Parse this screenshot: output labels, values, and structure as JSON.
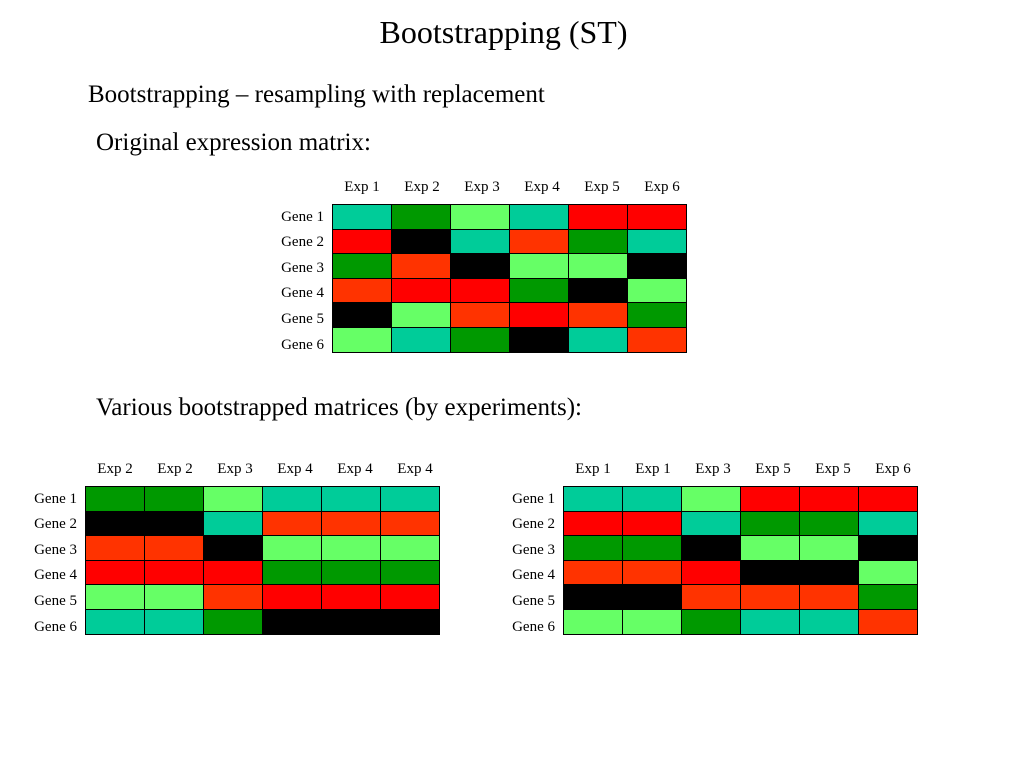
{
  "slide": {
    "title": "Bootstrapping (ST)",
    "subtitle": "Bootstrapping – resampling with replacement",
    "original_heading": "Original expression matrix:",
    "bootstrapped_heading": "Various bootstrapped matrices (by experiments):"
  },
  "colors": {
    "T": "#00cc99",
    "G": "#009900",
    "L": "#66ff66",
    "R": "#ff0000",
    "O": "#ff3300",
    "K": "#000000"
  },
  "matrices": [
    {
      "name": "original",
      "columns": [
        "Exp 1",
        "Exp 2",
        "Exp 3",
        "Exp 4",
        "Exp 5",
        "Exp 6"
      ],
      "rows": [
        "Gene 1",
        "Gene 2",
        "Gene 3",
        "Gene 4",
        "Gene 5",
        "Gene 6"
      ],
      "cells": [
        [
          "T",
          "G",
          "L",
          "T",
          "R",
          "R"
        ],
        [
          "R",
          "K",
          "T",
          "O",
          "G",
          "T"
        ],
        [
          "G",
          "O",
          "K",
          "L",
          "L",
          "K"
        ],
        [
          "O",
          "R",
          "R",
          "G",
          "K",
          "L"
        ],
        [
          "K",
          "L",
          "O",
          "R",
          "O",
          "G"
        ],
        [
          "L",
          "T",
          "G",
          "K",
          "T",
          "O"
        ]
      ]
    },
    {
      "name": "bootstrap-1",
      "columns": [
        "Exp 2",
        "Exp 2",
        "Exp 3",
        "Exp 4",
        "Exp 4",
        "Exp 4"
      ],
      "rows": [
        "Gene 1",
        "Gene 2",
        "Gene 3",
        "Gene 4",
        "Gene 5",
        "Gene 6"
      ],
      "cells": [
        [
          "G",
          "G",
          "L",
          "T",
          "T",
          "T"
        ],
        [
          "K",
          "K",
          "T",
          "O",
          "O",
          "O"
        ],
        [
          "O",
          "O",
          "K",
          "L",
          "L",
          "L"
        ],
        [
          "R",
          "R",
          "R",
          "G",
          "G",
          "G"
        ],
        [
          "L",
          "L",
          "O",
          "R",
          "R",
          "R"
        ],
        [
          "T",
          "T",
          "G",
          "K",
          "K",
          "K"
        ]
      ]
    },
    {
      "name": "bootstrap-2",
      "columns": [
        "Exp 1",
        "Exp 1",
        "Exp 3",
        "Exp 5",
        "Exp 5",
        "Exp 6"
      ],
      "rows": [
        "Gene 1",
        "Gene 2",
        "Gene 3",
        "Gene 4",
        "Gene 5",
        "Gene 6"
      ],
      "cells": [
        [
          "T",
          "T",
          "L",
          "R",
          "R",
          "R"
        ],
        [
          "R",
          "R",
          "T",
          "G",
          "G",
          "T"
        ],
        [
          "G",
          "G",
          "K",
          "L",
          "L",
          "K"
        ],
        [
          "O",
          "O",
          "R",
          "K",
          "K",
          "L"
        ],
        [
          "K",
          "K",
          "O",
          "O",
          "O",
          "G"
        ],
        [
          "L",
          "L",
          "G",
          "T",
          "T",
          "O"
        ]
      ]
    }
  ]
}
